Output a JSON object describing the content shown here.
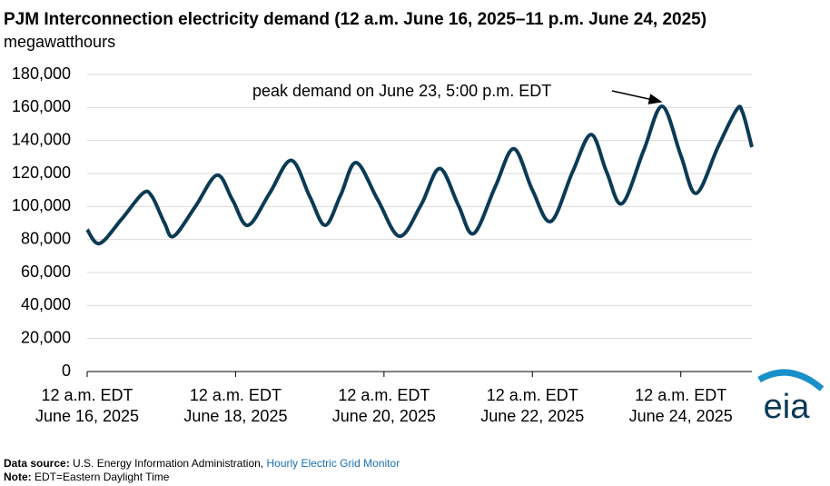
{
  "chart_data": {
    "type": "line",
    "title": "PJM Interconnection electricity demand (12 a.m.  June 16, 2025–11 p.m. June 24, 2025)",
    "subtitle": "megawatthours",
    "annotation": "peak demand on June 23, 5:00 p.m. EDT",
    "x": [
      0,
      4,
      11,
      18,
      21,
      25,
      28,
      35,
      42,
      47,
      52,
      59,
      66,
      72,
      77,
      82,
      87,
      94,
      101,
      108,
      114,
      120,
      125,
      132,
      138,
      144,
      150,
      157,
      163,
      168,
      173,
      180,
      186,
      192,
      197,
      204,
      210,
      212,
      215
    ],
    "series": [
      {
        "name": "electricity demand",
        "color": "#0b3a55",
        "values": [
          86000,
          77600,
          92000,
          108000,
          106000,
          90000,
          82000,
          100000,
          119000,
          104000,
          88600,
          108000,
          128000,
          106000,
          88600,
          107000,
          126600,
          104000,
          82000,
          101000,
          123000,
          101000,
          83600,
          112000,
          135000,
          110000,
          91000,
          121000,
          143600,
          121000,
          101800,
          134000,
          160700,
          131000,
          108000,
          136000,
          158500,
          157000,
          136000
        ]
      }
    ],
    "xlim": [
      0,
      215
    ],
    "xticks": [
      {
        "value": 0,
        "label": [
          "12 a.m. EDT",
          "June 16, 2025"
        ]
      },
      {
        "value": 48,
        "label": [
          "12 a.m. EDT",
          "June 18, 2025"
        ]
      },
      {
        "value": 96,
        "label": [
          "12 a.m. EDT",
          "June 20, 2025"
        ]
      },
      {
        "value": 144,
        "label": [
          "12 a.m. EDT",
          "June 22, 2025"
        ]
      },
      {
        "value": 192,
        "label": [
          "12 a.m. EDT",
          "June 24, 2025"
        ]
      }
    ],
    "ylim": [
      0,
      180000
    ],
    "yticks": [
      0,
      {
        "value": 20000,
        "label": "20,000"
      },
      {
        "value": 40000,
        "label": "40,000"
      },
      {
        "value": 60000,
        "label": "60,000"
      },
      {
        "value": 80000,
        "label": "80,000"
      },
      {
        "value": 100000,
        "label": "100,000"
      },
      {
        "value": 120000,
        "label": "120,000"
      },
      {
        "value": 140000,
        "label": "140,000"
      },
      {
        "value": 160000,
        "label": "160,000"
      },
      {
        "value": 180000,
        "label": "180,000"
      }
    ],
    "grid": true
  },
  "footer": {
    "source_label": "Data source:",
    "source_text": "U.S. Energy Information Administration,",
    "source_link": "Hourly Electric Grid Monitor",
    "note_label": "Note:",
    "note_text": "EDT=Eastern Daylight Time"
  },
  "logo": "eia"
}
